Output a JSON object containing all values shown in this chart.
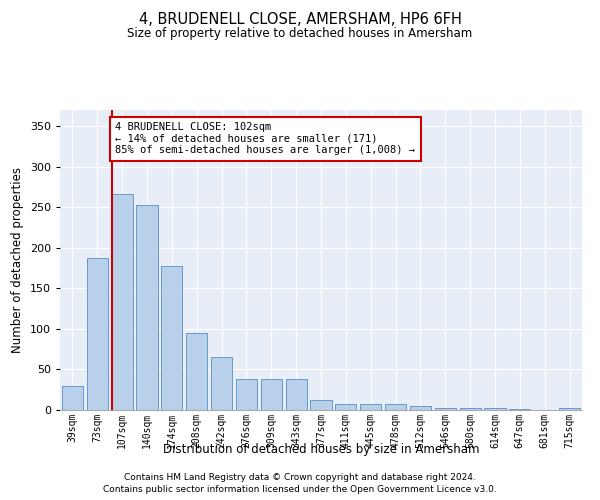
{
  "title": "4, BRUDENELL CLOSE, AMERSHAM, HP6 6FH",
  "subtitle": "Size of property relative to detached houses in Amersham",
  "xlabel": "Distribution of detached houses by size in Amersham",
  "ylabel": "Number of detached properties",
  "categories": [
    "39sqm",
    "73sqm",
    "107sqm",
    "140sqm",
    "174sqm",
    "208sqm",
    "242sqm",
    "276sqm",
    "309sqm",
    "343sqm",
    "377sqm",
    "411sqm",
    "445sqm",
    "478sqm",
    "512sqm",
    "546sqm",
    "580sqm",
    "614sqm",
    "647sqm",
    "681sqm",
    "715sqm"
  ],
  "values": [
    30,
    187,
    267,
    253,
    178,
    95,
    65,
    38,
    38,
    38,
    12,
    8,
    7,
    7,
    5,
    3,
    3,
    3,
    1,
    0,
    3
  ],
  "bar_color": "#b8d0ea",
  "bar_edge_color": "#6699cc",
  "vline_color": "#cc0000",
  "annotation_text": "4 BRUDENELL CLOSE: 102sqm\n← 14% of detached houses are smaller (171)\n85% of semi-detached houses are larger (1,008) →",
  "annotation_box_facecolor": "#ffffff",
  "annotation_box_edgecolor": "#cc0000",
  "ylim": [
    0,
    370
  ],
  "yticks": [
    0,
    50,
    100,
    150,
    200,
    250,
    300,
    350
  ],
  "bg_color": "#e8eef8",
  "footer_line1": "Contains HM Land Registry data © Crown copyright and database right 2024.",
  "footer_line2": "Contains public sector information licensed under the Open Government Licence v3.0."
}
